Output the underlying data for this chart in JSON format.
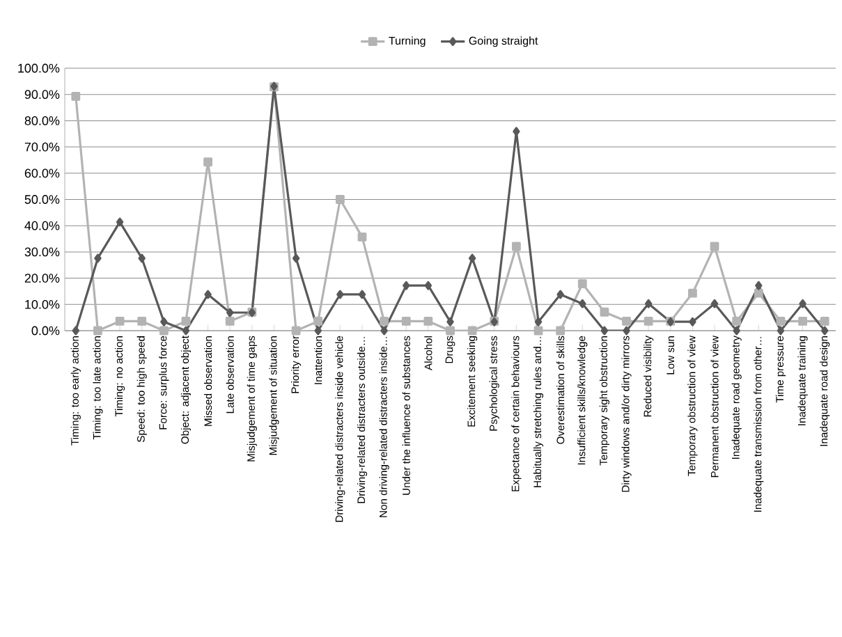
{
  "chart_data": {
    "type": "line",
    "categories": [
      "Timing: too early action",
      "Timing: too late action",
      "Timing: no action",
      "Speed: too high speed",
      "Force: surplus force",
      "Object: adjacent object",
      "Missed observation",
      "Late observation",
      "Misjudgement of time gaps",
      "Misjudgement of situation",
      "Priority error",
      "Inattention",
      "Driving-related distracters inside vehicle",
      "Driving-related distracters outside…",
      "Non driving-related distracters inside…",
      "Under the influence of substances",
      "Alcohol",
      "Drugs",
      "Excitement seeking",
      "Psychological stress",
      "Expectance of certain behaviours",
      "Habitually stretching rules and…",
      "Overestimation of skills",
      "Insufficient skills/knowledge",
      "Temporary sight obstruction",
      "Dirty windows and/or dirty mirrors",
      "Reduced visibility",
      "Low sun",
      "Temporary obstruction of view",
      "Permanent obstruction of view",
      "Inadequate road geometry",
      "Inadequate transmission  from other…",
      "Time pressure",
      "Inadequate training",
      "Inadequate road design"
    ],
    "series": [
      {
        "name": "Turning",
        "color": "#b3b3b3",
        "marker": "square",
        "values": [
          89.3,
          0,
          3.6,
          3.6,
          0,
          3.6,
          64.3,
          3.6,
          7.1,
          92.9,
          0,
          3.6,
          50,
          35.7,
          3.6,
          3.6,
          3.6,
          0,
          0,
          3.6,
          32.1,
          0,
          0,
          17.9,
          7.1,
          3.6,
          3.6,
          3.6,
          14.3,
          32.1,
          3.6,
          14.3,
          3.6,
          3.6,
          3.6
        ]
      },
      {
        "name": "Going straight",
        "color": "#595959",
        "marker": "diamond",
        "values": [
          0,
          27.6,
          41.4,
          27.6,
          3.4,
          0,
          13.8,
          6.9,
          6.9,
          93.1,
          27.6,
          0,
          13.8,
          13.8,
          0,
          17.2,
          17.2,
          3.4,
          27.6,
          3.4,
          75.9,
          3.4,
          13.8,
          10.3,
          0,
          0,
          10.3,
          3.4,
          3.4,
          10.3,
          0,
          17.2,
          0,
          10.3,
          0
        ]
      }
    ],
    "ylim": [
      0,
      100
    ],
    "yticks": [
      {
        "value": 0,
        "label": "0.0%"
      },
      {
        "value": 10,
        "label": "10.0%"
      },
      {
        "value": 20,
        "label": "20.0%"
      },
      {
        "value": 30,
        "label": "30.0%"
      },
      {
        "value": 40,
        "label": "40.0%"
      },
      {
        "value": 50,
        "label": "50.0%"
      },
      {
        "value": 60,
        "label": "60.0%"
      },
      {
        "value": 70,
        "label": "70.0%"
      },
      {
        "value": 80,
        "label": "80.0%"
      },
      {
        "value": 90,
        "label": "90.0%"
      },
      {
        "value": 100,
        "label": "100.0%"
      }
    ],
    "grid": "y",
    "legend": "top",
    "line_style": "solid"
  }
}
